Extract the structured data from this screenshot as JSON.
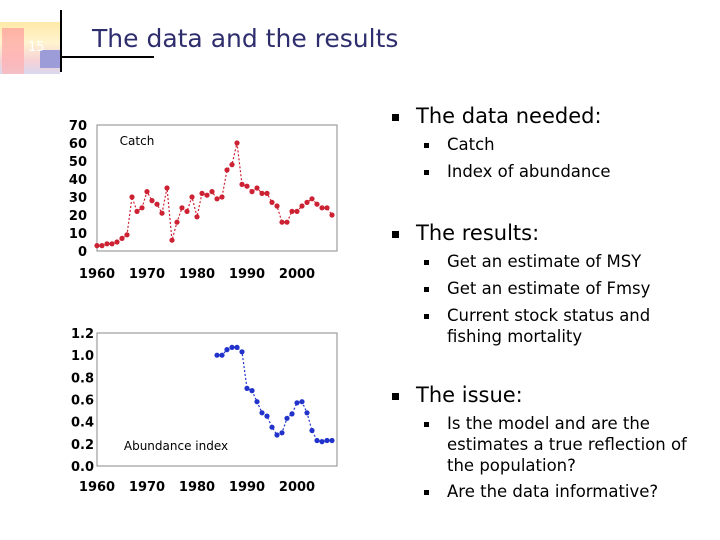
{
  "slide": {
    "number": "15",
    "title": "The data and the results"
  },
  "bullets": [
    {
      "text": "The data needed:",
      "items": [
        "Catch",
        "Index of abundance"
      ]
    },
    {
      "text": "The results:",
      "items": [
        "Get an estimate of MSY",
        "Get an estimate of Fmsy",
        "Current stock status and fishing mortality"
      ]
    },
    {
      "text": "The issue:",
      "items": [
        "Is the model and are the estimates a true reflection of the population?",
        "Are the data informative?"
      ]
    }
  ],
  "colors": {
    "catch_series": "#cc2233",
    "abundance_series": "#2233cc",
    "title": "#2e2e6e"
  },
  "chart_data": [
    {
      "type": "line",
      "title": "",
      "inner_label": "Catch",
      "xlabel": "",
      "ylabel": "",
      "xlim": [
        1960,
        2008
      ],
      "ylim": [
        0,
        70
      ],
      "x_ticks": [
        "1960",
        "1970",
        "1980",
        "1990",
        "2000"
      ],
      "y_ticks": [
        "0",
        "10",
        "20",
        "30",
        "40",
        "50",
        "60",
        "70"
      ],
      "series": [
        {
          "x": [
            1960,
            1961,
            1962,
            1963,
            1964,
            1965,
            1966,
            1967,
            1968,
            1969,
            1970,
            1971,
            1972,
            1973,
            1974,
            1975,
            1976,
            1977,
            1978,
            1979,
            1980,
            1981,
            1982,
            1983,
            1984,
            1985,
            1986,
            1987,
            1988,
            1989,
            1990,
            1991,
            1992,
            1993,
            1994,
            1995,
            1996,
            1997,
            1998,
            1999,
            2000,
            2001,
            2002,
            2003,
            2004,
            2005,
            2006,
            2007
          ],
          "y": [
            3,
            3,
            4,
            4,
            5,
            7,
            9,
            30,
            22,
            24,
            33,
            28,
            26,
            21,
            35,
            6,
            16,
            24,
            22,
            30,
            19,
            32,
            31,
            33,
            29,
            30,
            45,
            48,
            60,
            37,
            36,
            33,
            35,
            32,
            32,
            27,
            25,
            16,
            16,
            22,
            22,
            25,
            27,
            29,
            26,
            24,
            24,
            20
          ]
        }
      ]
    },
    {
      "type": "line",
      "title": "",
      "inner_label": "Abundance index",
      "xlabel": "",
      "ylabel": "",
      "xlim": [
        1960,
        2008
      ],
      "ylim": [
        0.0,
        1.2
      ],
      "x_ticks": [
        "1960",
        "1970",
        "1980",
        "1990",
        "2000"
      ],
      "y_ticks": [
        "0.0",
        "0.2",
        "0.4",
        "0.6",
        "0.8",
        "1.0",
        "1.2"
      ],
      "series": [
        {
          "x": [
            1984,
            1985,
            1986,
            1987,
            1988,
            1989,
            1990,
            1991,
            1992,
            1993,
            1994,
            1995,
            1996,
            1997,
            1998,
            1999,
            2000,
            2001,
            2002,
            2003,
            2004,
            2005,
            2006,
            2007
          ],
          "y": [
            1.0,
            1.0,
            1.05,
            1.07,
            1.07,
            1.03,
            0.7,
            0.68,
            0.58,
            0.48,
            0.45,
            0.35,
            0.28,
            0.3,
            0.43,
            0.47,
            0.57,
            0.58,
            0.48,
            0.32,
            0.23,
            0.22,
            0.23,
            0.23
          ]
        }
      ]
    }
  ]
}
